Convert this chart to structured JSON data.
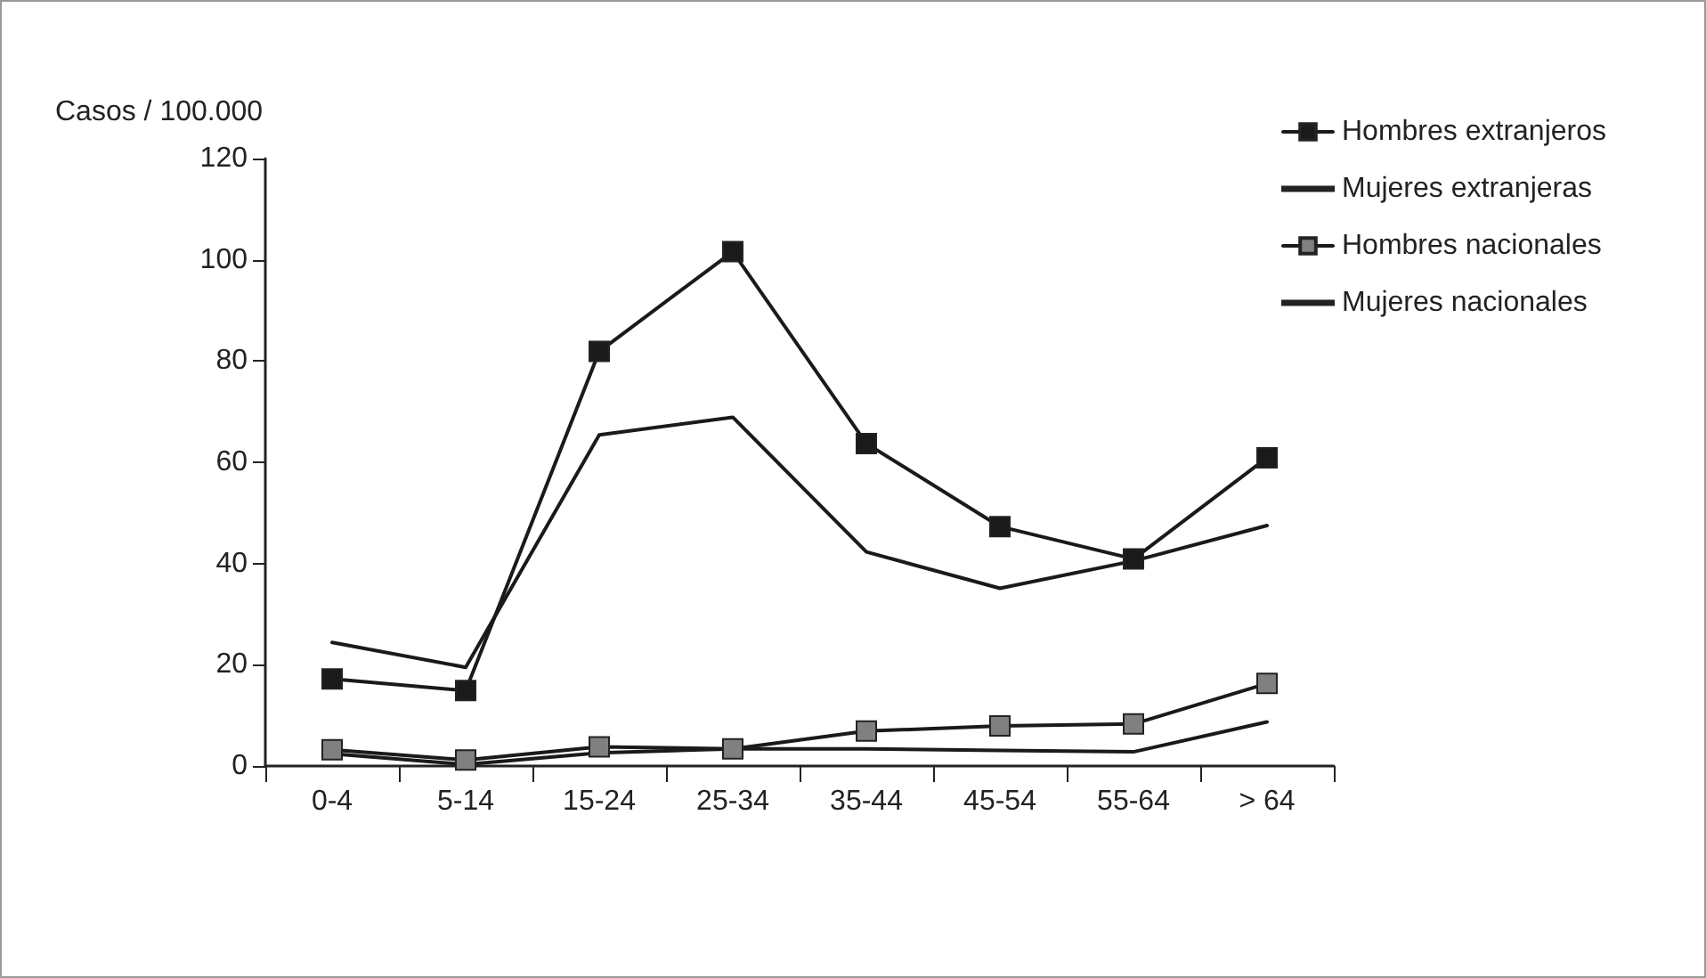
{
  "chart_data": {
    "type": "line",
    "ylabel": "Casos / 100.000",
    "categories": [
      "0-4",
      "5-14",
      "15-24",
      "25-34",
      "35-44",
      "45-54",
      "55-64",
      "> 64"
    ],
    "ylim": [
      0,
      120
    ],
    "yticks": [
      0,
      20,
      40,
      60,
      80,
      100,
      120
    ],
    "grid": false,
    "legend": "top right",
    "line_style": "solid",
    "series": [
      {
        "name": "Hombres extranjeros",
        "color": "#1a1a1a",
        "marker": "square",
        "values": [
          17.2,
          14.9,
          81.9,
          101.6,
          63.7,
          47.3,
          40.9,
          60.9
        ]
      },
      {
        "name": "Mujeres extranjeras",
        "color": "#1a1a1a",
        "marker": "none",
        "values": [
          24.4,
          19.5,
          65.4,
          68.9,
          42.3,
          35.1,
          40.5,
          47.5
        ]
      },
      {
        "name": "Hombres nacionales",
        "color": "#808080",
        "marker": "square",
        "values": [
          3.2,
          1.2,
          3.8,
          3.4,
          6.9,
          7.9,
          8.3,
          16.3
        ]
      },
      {
        "name": "Mujeres nacionales",
        "color": "#1a1a1a",
        "marker": "none",
        "values": [
          2.4,
          0.3,
          2.6,
          3.4,
          3.4,
          3.1,
          2.8,
          8.7
        ]
      }
    ]
  }
}
